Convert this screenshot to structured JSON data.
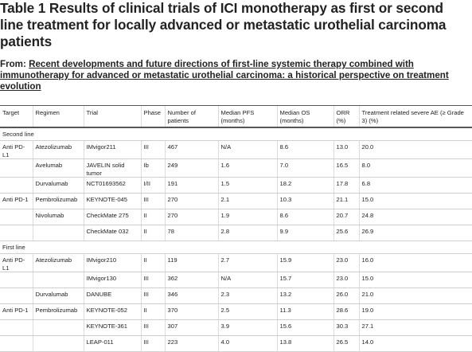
{
  "title": "Table 1 Results of clinical trials of ICI monotherapy as first or second line treatment for locally advanced or metastatic urothelial carcinoma patients",
  "from": {
    "prefix": "From: ",
    "link": "Recent developments and future directions of first-line systemic therapy combined with immunotherapy for advanced or metastatic urothelial carcinoma: a historical perspective on treatment evolution"
  },
  "table": {
    "headers": [
      "Target",
      "Regimen",
      "Trial",
      "Phase",
      "Number of patients",
      "Median PFS (months)",
      "Median OS (months)",
      "ORR (%)",
      "Treatment related severe AE (≥ Grade 3) (%)"
    ],
    "sections": [
      {
        "label": "Second line",
        "rows": [
          [
            "Anti PD-L1",
            "Atezolizumab",
            "IMvigor211",
            "III",
            "467",
            "N/A",
            "8.6",
            "13.0",
            "20.0"
          ],
          [
            "",
            "Avelumab",
            "JAVELIN solid tumor",
            "Ib",
            "249",
            "1.6",
            "7.0",
            "16.5",
            "8.0"
          ],
          [
            "",
            "Durvalumab",
            "NCT01693562",
            "I/II",
            "191",
            "1.5",
            "18.2",
            "17.8",
            "6.8"
          ],
          [
            "Anti PD-1",
            "Pembrolizumab",
            "KEYNOTE-045",
            "III",
            "270",
            "2.1",
            "10.3",
            "21.1",
            "15.0"
          ],
          [
            "",
            "Nivolumab",
            "CheckMate 275",
            "II",
            "270",
            "1.9",
            "8.6",
            "20.7",
            "24.8"
          ],
          [
            "",
            "",
            "CheckMate 032",
            "II",
            "78",
            "2.8",
            "9.9",
            "25.6",
            "26.9"
          ]
        ]
      },
      {
        "label": "First line",
        "rows": [
          [
            "Anti PD-L1",
            "Atezolizumab",
            "IMvigor210",
            "II",
            "119",
            "2.7",
            "15.9",
            "23.0",
            "16.0"
          ],
          [
            "",
            "",
            "IMvigor130",
            "III",
            "362",
            "N/A",
            "15.7",
            "23.0",
            "15.0"
          ],
          [
            "",
            "Durvalumab",
            "DANUBE",
            "III",
            "346",
            "2.3",
            "13.2",
            "26.0",
            "21.0"
          ],
          [
            "Anti PD-1",
            "Pembrolizumab",
            "KEYNOTE-052",
            "II",
            "370",
            "2.5",
            "11.3",
            "28.6",
            "19.0"
          ],
          [
            "",
            "",
            "KEYNOTE-361",
            "III",
            "307",
            "3.9",
            "15.6",
            "30.3",
            "27.1"
          ],
          [
            "",
            "",
            "LEAP-011",
            "III",
            "223",
            "4.0",
            "13.8",
            "26.5",
            "14.0"
          ]
        ]
      }
    ]
  }
}
